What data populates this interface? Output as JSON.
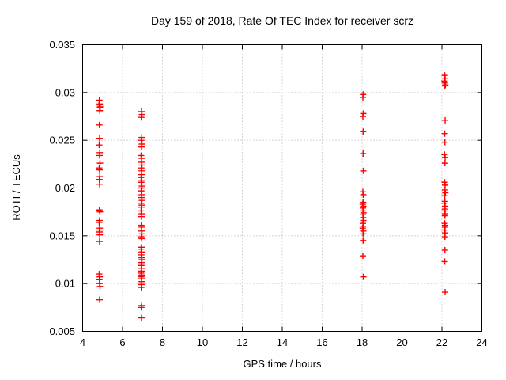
{
  "chart_data": {
    "type": "scatter",
    "title": "Day 159 of 2018, Rate Of TEC Index for receiver scrz",
    "xlabel": "GPS time / hours",
    "ylabel": "ROTI / TECUs",
    "xlim": [
      4,
      24
    ],
    "ylim": [
      0.005,
      0.035
    ],
    "xticks": [
      4,
      6,
      8,
      10,
      12,
      14,
      16,
      18,
      20,
      22,
      24
    ],
    "yticks": [
      0.005,
      0.01,
      0.015,
      0.02,
      0.025,
      0.03,
      0.035
    ],
    "grid": "dotted",
    "legend_position": "none",
    "marker": "plus",
    "marker_color": "#ff0000",
    "grid_color": "#aaaaaa",
    "border_color": "#000000",
    "series": [
      {
        "name": "ROTI",
        "points": [
          [
            4.84,
            0.0292
          ],
          [
            4.86,
            0.0288
          ],
          [
            4.82,
            0.0287
          ],
          [
            4.88,
            0.0285
          ],
          [
            4.85,
            0.0284
          ],
          [
            4.86,
            0.0281
          ],
          [
            4.84,
            0.0266
          ],
          [
            4.85,
            0.0252
          ],
          [
            4.83,
            0.0245
          ],
          [
            4.86,
            0.0237
          ],
          [
            4.85,
            0.0234
          ],
          [
            4.87,
            0.0226
          ],
          [
            4.83,
            0.0221
          ],
          [
            4.85,
            0.0219
          ],
          [
            4.86,
            0.0212
          ],
          [
            4.84,
            0.0209
          ],
          [
            4.85,
            0.0204
          ],
          [
            4.84,
            0.0177
          ],
          [
            4.87,
            0.0175
          ],
          [
            4.85,
            0.0166
          ],
          [
            4.83,
            0.0164
          ],
          [
            4.86,
            0.0158
          ],
          [
            4.84,
            0.0156
          ],
          [
            4.85,
            0.0154
          ],
          [
            4.86,
            0.0151
          ],
          [
            4.85,
            0.0144
          ],
          [
            4.83,
            0.011
          ],
          [
            4.86,
            0.0107
          ],
          [
            4.84,
            0.0104
          ],
          [
            4.85,
            0.01
          ],
          [
            4.87,
            0.0097
          ],
          [
            4.85,
            0.0083
          ],
          [
            6.95,
            0.028
          ],
          [
            6.97,
            0.0277
          ],
          [
            6.94,
            0.0274
          ],
          [
            6.96,
            0.0253
          ],
          [
            6.94,
            0.025
          ],
          [
            6.97,
            0.0246
          ],
          [
            6.95,
            0.0243
          ],
          [
            6.93,
            0.0234
          ],
          [
            6.96,
            0.0231
          ],
          [
            6.95,
            0.0227
          ],
          [
            6.97,
            0.0224
          ],
          [
            6.94,
            0.0221
          ],
          [
            6.96,
            0.0218
          ],
          [
            6.95,
            0.0214
          ],
          [
            6.93,
            0.0211
          ],
          [
            6.96,
            0.0208
          ],
          [
            6.94,
            0.0206
          ],
          [
            6.97,
            0.0202
          ],
          [
            6.95,
            0.02
          ],
          [
            6.94,
            0.0197
          ],
          [
            6.96,
            0.0193
          ],
          [
            6.95,
            0.019
          ],
          [
            6.97,
            0.0187
          ],
          [
            6.94,
            0.0184
          ],
          [
            6.96,
            0.0182
          ],
          [
            6.95,
            0.018
          ],
          [
            6.93,
            0.0176
          ],
          [
            6.96,
            0.0173
          ],
          [
            6.95,
            0.017
          ],
          [
            6.94,
            0.0161
          ],
          [
            6.96,
            0.0159
          ],
          [
            6.95,
            0.0155
          ],
          [
            6.97,
            0.0152
          ],
          [
            6.94,
            0.0149
          ],
          [
            6.96,
            0.0147
          ],
          [
            6.95,
            0.0138
          ],
          [
            6.93,
            0.0136
          ],
          [
            6.96,
            0.0133
          ],
          [
            6.94,
            0.013
          ],
          [
            6.95,
            0.0127
          ],
          [
            6.97,
            0.0125
          ],
          [
            6.95,
            0.0122
          ],
          [
            6.94,
            0.0119
          ],
          [
            6.96,
            0.0116
          ],
          [
            6.95,
            0.0113
          ],
          [
            6.93,
            0.0111
          ],
          [
            6.96,
            0.0109
          ],
          [
            6.94,
            0.0107
          ],
          [
            6.95,
            0.0105
          ],
          [
            6.96,
            0.0102
          ],
          [
            6.95,
            0.0099
          ],
          [
            6.94,
            0.0096
          ],
          [
            6.96,
            0.0077
          ],
          [
            6.94,
            0.0075
          ],
          [
            6.95,
            0.0064
          ],
          [
            18.05,
            0.0298
          ],
          [
            18.04,
            0.0295
          ],
          [
            18.06,
            0.0278
          ],
          [
            18.04,
            0.0275
          ],
          [
            18.05,
            0.0259
          ],
          [
            18.05,
            0.0236
          ],
          [
            18.06,
            0.0218
          ],
          [
            18.04,
            0.0196
          ],
          [
            18.06,
            0.0193
          ],
          [
            18.05,
            0.0185
          ],
          [
            18.03,
            0.0183
          ],
          [
            18.06,
            0.0181
          ],
          [
            18.04,
            0.0179
          ],
          [
            18.05,
            0.0176
          ],
          [
            18.07,
            0.0174
          ],
          [
            18.04,
            0.0172
          ],
          [
            18.05,
            0.0169
          ],
          [
            18.06,
            0.0166
          ],
          [
            18.04,
            0.0163
          ],
          [
            18.05,
            0.016
          ],
          [
            18.03,
            0.0158
          ],
          [
            18.06,
            0.0155
          ],
          [
            18.05,
            0.0152
          ],
          [
            18.05,
            0.0145
          ],
          [
            18.04,
            0.0129
          ],
          [
            18.06,
            0.0107
          ],
          [
            22.14,
            0.0318
          ],
          [
            22.16,
            0.0315
          ],
          [
            22.13,
            0.0312
          ],
          [
            22.15,
            0.031
          ],
          [
            22.17,
            0.0308
          ],
          [
            22.15,
            0.0307
          ],
          [
            22.16,
            0.0271
          ],
          [
            22.14,
            0.0257
          ],
          [
            22.15,
            0.0248
          ],
          [
            22.13,
            0.0235
          ],
          [
            22.16,
            0.0232
          ],
          [
            22.15,
            0.0226
          ],
          [
            22.14,
            0.0206
          ],
          [
            22.16,
            0.0203
          ],
          [
            22.15,
            0.0198
          ],
          [
            22.17,
            0.0195
          ],
          [
            22.14,
            0.0192
          ],
          [
            22.15,
            0.0186
          ],
          [
            22.13,
            0.0184
          ],
          [
            22.16,
            0.0181
          ],
          [
            22.15,
            0.0178
          ],
          [
            22.14,
            0.0176
          ],
          [
            22.16,
            0.0173
          ],
          [
            22.15,
            0.0171
          ],
          [
            22.14,
            0.0163
          ],
          [
            22.16,
            0.0161
          ],
          [
            22.15,
            0.0159
          ],
          [
            22.13,
            0.0156
          ],
          [
            22.16,
            0.0153
          ],
          [
            22.15,
            0.0149
          ],
          [
            22.15,
            0.0135
          ],
          [
            22.14,
            0.0123
          ],
          [
            22.16,
            0.0091
          ]
        ]
      }
    ]
  }
}
